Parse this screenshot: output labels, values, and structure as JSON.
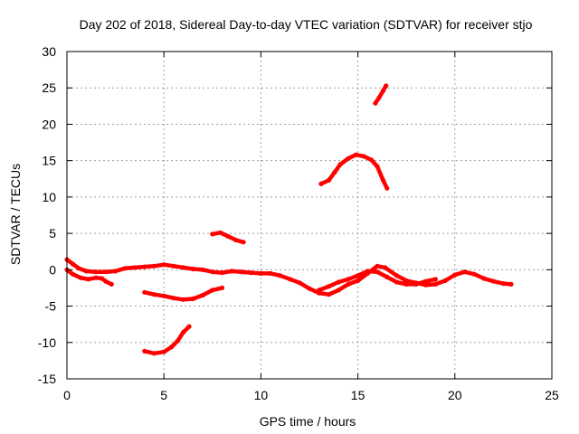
{
  "chart_data": {
    "type": "scatter",
    "title": "Day 202 of 2018, Sidereal Day-to-day VTEC variation (SDTVAR) for receiver stjo",
    "xlabel": "GPS time / hours",
    "ylabel": "SDTVAR / TECUs",
    "xlim": [
      0,
      25
    ],
    "ylim": [
      -15,
      30
    ],
    "x_ticks": [
      0,
      5,
      10,
      15,
      20,
      25
    ],
    "y_ticks": [
      -15,
      -10,
      -5,
      0,
      5,
      10,
      15,
      20,
      25,
      30
    ],
    "grid": true,
    "series_color": "#ff0000",
    "series": [
      {
        "name": "main band",
        "points": [
          [
            0,
            1.4
          ],
          [
            0.3,
            0.8
          ],
          [
            0.6,
            0.2
          ],
          [
            1.0,
            -0.2
          ],
          [
            1.5,
            -0.3
          ],
          [
            2.0,
            -0.3
          ],
          [
            2.5,
            -0.2
          ],
          [
            3.0,
            0.2
          ],
          [
            3.5,
            0.3
          ],
          [
            4.0,
            0.4
          ],
          [
            4.5,
            0.5
          ],
          [
            5.0,
            0.7
          ],
          [
            5.5,
            0.5
          ],
          [
            6.0,
            0.3
          ],
          [
            6.5,
            0.1
          ],
          [
            7.0,
            0
          ],
          [
            7.5,
            -0.3
          ],
          [
            8.0,
            -0.4
          ],
          [
            8.5,
            -0.2
          ],
          [
            9.0,
            -0.3
          ],
          [
            9.5,
            -0.4
          ],
          [
            10.0,
            -0.5
          ],
          [
            10.5,
            -0.5
          ],
          [
            11.0,
            -0.8
          ],
          [
            11.5,
            -1.3
          ],
          [
            12.0,
            -1.8
          ],
          [
            12.5,
            -2.6
          ],
          [
            13.0,
            -3.2
          ],
          [
            13.5,
            -3.4
          ],
          [
            14.0,
            -2.8
          ],
          [
            14.5,
            -2.0
          ],
          [
            15.0,
            -1.5
          ],
          [
            15.5,
            -0.5
          ],
          [
            16.0,
            0.5
          ],
          [
            16.4,
            0.3
          ],
          [
            17.0,
            -0.8
          ],
          [
            17.5,
            -1.5
          ],
          [
            18.0,
            -1.8
          ],
          [
            18.5,
            -2.1
          ],
          [
            19.0,
            -2.0
          ],
          [
            19.5,
            -1.5
          ],
          [
            20.0,
            -0.7
          ],
          [
            20.5,
            -0.3
          ],
          [
            21.0,
            -0.6
          ],
          [
            21.5,
            -1.2
          ],
          [
            22.0,
            -1.6
          ],
          [
            22.5,
            -1.9
          ],
          [
            22.9,
            -2.0
          ]
        ]
      },
      {
        "name": "lower band early",
        "points": [
          [
            0,
            0
          ],
          [
            0.3,
            -0.6
          ],
          [
            0.7,
            -1.1
          ],
          [
            1.1,
            -1.3
          ],
          [
            1.5,
            -1.1
          ],
          [
            1.8,
            -1.2
          ],
          [
            2.0,
            -1.6
          ],
          [
            2.3,
            -2.0
          ]
        ]
      },
      {
        "name": "lower band late",
        "points": [
          [
            13.0,
            -2.8
          ],
          [
            13.5,
            -2.3
          ],
          [
            14.0,
            -1.7
          ],
          [
            14.5,
            -1.3
          ],
          [
            15.0,
            -0.8
          ],
          [
            15.5,
            -0.2
          ],
          [
            16.0,
            -0.3
          ],
          [
            16.5,
            -1.0
          ],
          [
            17.0,
            -1.7
          ],
          [
            17.5,
            -2.0
          ],
          [
            18.0,
            -2.0
          ],
          [
            18.5,
            -1.6
          ],
          [
            19.0,
            -1.3
          ]
        ]
      },
      {
        "name": "arc 4-7h",
        "points": [
          [
            4.0,
            -3.1
          ],
          [
            4.5,
            -3.4
          ],
          [
            5.0,
            -3.6
          ],
          [
            5.5,
            -3.9
          ],
          [
            6.0,
            -4.1
          ],
          [
            6.5,
            -4.0
          ],
          [
            7.0,
            -3.5
          ],
          [
            7.5,
            -2.8
          ],
          [
            8.0,
            -2.5
          ]
        ]
      },
      {
        "name": "arc 4-6h low",
        "points": [
          [
            4.0,
            -11.2
          ],
          [
            4.5,
            -11.5
          ],
          [
            5.0,
            -11.3
          ],
          [
            5.4,
            -10.6
          ],
          [
            5.7,
            -9.8
          ],
          [
            6.0,
            -8.6
          ],
          [
            6.3,
            -7.8
          ]
        ]
      },
      {
        "name": "segment 7.5-9h",
        "points": [
          [
            7.5,
            4.9
          ],
          [
            7.9,
            5.1
          ],
          [
            8.3,
            4.6
          ],
          [
            8.7,
            4.1
          ],
          [
            9.1,
            3.8
          ]
        ]
      },
      {
        "name": "hump 13-16.5h",
        "points": [
          [
            13.1,
            11.8
          ],
          [
            13.5,
            12.3
          ],
          [
            13.8,
            13.4
          ],
          [
            14.1,
            14.5
          ],
          [
            14.5,
            15.3
          ],
          [
            14.9,
            15.8
          ],
          [
            15.3,
            15.6
          ],
          [
            15.7,
            15.1
          ],
          [
            16.0,
            14.2
          ],
          [
            16.3,
            12.3
          ],
          [
            16.5,
            11.2
          ]
        ]
      },
      {
        "name": "rise 16-16.5h",
        "points": [
          [
            15.9,
            22.9
          ],
          [
            16.1,
            23.7
          ],
          [
            16.3,
            24.6
          ],
          [
            16.45,
            25.3
          ]
        ]
      }
    ]
  }
}
